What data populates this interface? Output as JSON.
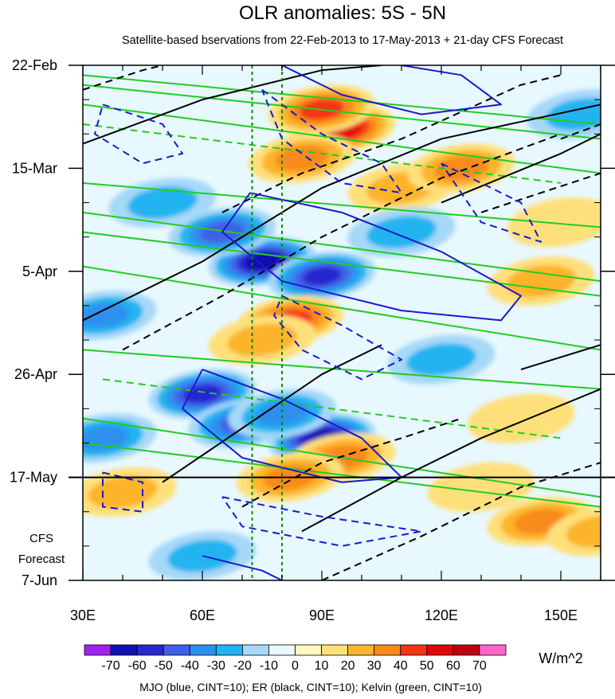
{
  "chart_data": {
    "type": "heatmap",
    "title": "OLR anomalies: 5S - 5N",
    "subtitle": "Satellite-based bservations from 22-Feb-2013 to 17-May-2013 + 21-day CFS Forecast",
    "x_tick_labels": [
      "30E",
      "60E",
      "90E",
      "120E",
      "150E"
    ],
    "x_tick_values": [
      30,
      60,
      90,
      120,
      150
    ],
    "xlim": [
      30,
      160
    ],
    "y_tick_labels": [
      "22-Feb",
      "15-Mar",
      "5-Apr",
      "26-Apr",
      "17-May",
      "7-Jun"
    ],
    "y_tick_days": [
      0,
      21,
      42,
      63,
      84,
      105
    ],
    "ylim_days": [
      0,
      105
    ],
    "observation_end_label": "17-May",
    "forecast_label_lines": [
      "CFS",
      "Forecast"
    ],
    "reference_lines_lon": [
      72.5,
      80
    ],
    "colorbar": {
      "labels": [
        "-70",
        "-60",
        "-50",
        "-40",
        "-30",
        "-20",
        "-10",
        "0",
        "10",
        "20",
        "30",
        "40",
        "50",
        "60",
        "70"
      ],
      "colors": [
        "#a020f0",
        "#1010b0",
        "#2828d0",
        "#4060e6",
        "#2e90ee",
        "#20b4f0",
        "#a6d8f8",
        "#e8f8ff",
        "#fff8c0",
        "#fee07a",
        "#fdb42c",
        "#f98a1a",
        "#f53414",
        "#e2060a",
        "#c00010",
        "#ff66cc"
      ],
      "units": "W/m^2"
    },
    "footer": "MJO (blue, CINT=10); ER (black, CINT=10); Kelvin (green, CINT=10)",
    "series": [
      {
        "name": "MJO",
        "color": "#1a1acd",
        "cint": 10
      },
      {
        "name": "ER",
        "color": "#000000",
        "cint": 10
      },
      {
        "name": "Kelvin",
        "color": "#22cc22",
        "cint": 10
      }
    ],
    "anomaly_features": [
      {
        "lon": 95,
        "day": 13,
        "value": 55
      },
      {
        "lon": 90,
        "day": 9,
        "value": 40
      },
      {
        "lon": 85,
        "day": 19,
        "value": 35
      },
      {
        "lon": 110,
        "day": 25,
        "value": 25
      },
      {
        "lon": 125,
        "day": 21,
        "value": 30
      },
      {
        "lon": 75,
        "day": 40,
        "value": -60
      },
      {
        "lon": 90,
        "day": 43,
        "value": -55
      },
      {
        "lon": 65,
        "day": 34,
        "value": -40
      },
      {
        "lon": 82,
        "day": 52,
        "value": 40
      },
      {
        "lon": 75,
        "day": 56,
        "value": 25
      },
      {
        "lon": 35,
        "day": 51,
        "value": -30
      },
      {
        "lon": 60,
        "day": 67,
        "value": -50
      },
      {
        "lon": 70,
        "day": 73,
        "value": -45
      },
      {
        "lon": 90,
        "day": 76,
        "value": -60
      },
      {
        "lon": 80,
        "day": 71,
        "value": -30
      },
      {
        "lon": 95,
        "day": 80,
        "value": 35
      },
      {
        "lon": 82,
        "day": 84,
        "value": 30
      },
      {
        "lon": 40,
        "day": 87,
        "value": 20
      },
      {
        "lon": 145,
        "day": 93,
        "value": 30
      },
      {
        "lon": 160,
        "day": 95,
        "value": 25
      },
      {
        "lon": 60,
        "day": 100,
        "value": -25
      },
      {
        "lon": 130,
        "day": 86,
        "value": 15
      },
      {
        "lon": 120,
        "day": 60,
        "value": -20
      },
      {
        "lon": 145,
        "day": 44,
        "value": 20
      },
      {
        "lon": 140,
        "day": 72,
        "value": 15
      },
      {
        "lon": 50,
        "day": 28,
        "value": -25
      },
      {
        "lon": 110,
        "day": 34,
        "value": -20
      },
      {
        "lon": 35,
        "day": 76,
        "value": -35
      },
      {
        "lon": 155,
        "day": 10,
        "value": -20
      },
      {
        "lon": 150,
        "day": 32,
        "value": 15
      }
    ],
    "contours": [
      {
        "series": "Kelvin",
        "style": "solid",
        "points": [
          [
            30,
            2
          ],
          [
            160,
            12
          ]
        ]
      },
      {
        "series": "Kelvin",
        "style": "solid",
        "points": [
          [
            30,
            4
          ],
          [
            160,
            15
          ]
        ]
      },
      {
        "series": "Kelvin",
        "style": "solid",
        "points": [
          [
            30,
            8
          ],
          [
            160,
            22
          ]
        ]
      },
      {
        "series": "Kelvin",
        "style": "solid",
        "points": [
          [
            30,
            24
          ],
          [
            160,
            33
          ]
        ]
      },
      {
        "series": "Kelvin",
        "style": "solid",
        "points": [
          [
            30,
            30
          ],
          [
            160,
            44
          ]
        ]
      },
      {
        "series": "Kelvin",
        "style": "solid",
        "points": [
          [
            30,
            34
          ],
          [
            160,
            47
          ]
        ]
      },
      {
        "series": "Kelvin",
        "style": "solid",
        "points": [
          [
            30,
            41
          ],
          [
            160,
            58
          ]
        ]
      },
      {
        "series": "Kelvin",
        "style": "solid",
        "points": [
          [
            30,
            58
          ],
          [
            160,
            66
          ]
        ]
      },
      {
        "series": "Kelvin",
        "style": "solid",
        "points": [
          [
            30,
            72
          ],
          [
            160,
            88
          ]
        ]
      },
      {
        "series": "Kelvin",
        "style": "solid",
        "points": [
          [
            30,
            77
          ],
          [
            160,
            90
          ]
        ]
      },
      {
        "series": "Kelvin",
        "style": "dashed",
        "points": [
          [
            30,
            12
          ],
          [
            150,
            24
          ]
        ]
      },
      {
        "series": "Kelvin",
        "style": "dashed",
        "points": [
          [
            35,
            64
          ],
          [
            150,
            76
          ]
        ]
      },
      {
        "series": "ER",
        "style": "solid",
        "points": [
          [
            30,
            16
          ],
          [
            60,
            7
          ],
          [
            90,
            1
          ],
          [
            105,
            0
          ]
        ]
      },
      {
        "series": "ER",
        "style": "solid",
        "points": [
          [
            30,
            52
          ],
          [
            60,
            40
          ],
          [
            90,
            25
          ],
          [
            120,
            15
          ],
          [
            160,
            8
          ]
        ]
      },
      {
        "series": "ER",
        "style": "solid",
        "points": [
          [
            50,
            85
          ],
          [
            70,
            74
          ],
          [
            90,
            63
          ],
          [
            105,
            57
          ]
        ]
      },
      {
        "series": "ER",
        "style": "solid",
        "points": [
          [
            85,
            95
          ],
          [
            110,
            84
          ],
          [
            130,
            76
          ],
          [
            160,
            66
          ]
        ]
      },
      {
        "series": "ER",
        "style": "solid",
        "points": [
          [
            120,
            28
          ],
          [
            150,
            18
          ],
          [
            160,
            14
          ]
        ]
      },
      {
        "series": "ER",
        "style": "solid",
        "points": [
          [
            140,
            62
          ],
          [
            160,
            57
          ]
        ]
      },
      {
        "series": "ER",
        "style": "dashed",
        "points": [
          [
            30,
            5
          ],
          [
            45,
            1
          ],
          [
            50,
            0
          ]
        ]
      },
      {
        "series": "ER",
        "style": "dashed",
        "points": [
          [
            40,
            58
          ],
          [
            65,
            47
          ],
          [
            90,
            35
          ],
          [
            120,
            23
          ],
          [
            150,
            14
          ]
        ]
      },
      {
        "series": "ER",
        "style": "dashed",
        "points": [
          [
            65,
            30
          ],
          [
            85,
            22
          ],
          [
            110,
            15
          ],
          [
            140,
            4
          ],
          [
            150,
            2
          ]
        ]
      },
      {
        "series": "ER",
        "style": "dashed",
        "points": [
          [
            70,
            90
          ],
          [
            90,
            81
          ],
          [
            110,
            76
          ],
          [
            125,
            72
          ]
        ]
      },
      {
        "series": "ER",
        "style": "dashed",
        "points": [
          [
            90,
            105
          ],
          [
            115,
            96
          ],
          [
            140,
            86
          ],
          [
            160,
            81
          ]
        ]
      },
      {
        "series": "ER",
        "style": "dashed",
        "points": [
          [
            130,
            30
          ],
          [
            160,
            22
          ]
        ]
      },
      {
        "series": "ER",
        "style": "dashed",
        "points": [
          [
            150,
            15
          ],
          [
            160,
            12
          ]
        ]
      },
      {
        "series": "MJO",
        "style": "solid",
        "points": [
          [
            72,
            26
          ],
          [
            65,
            34
          ],
          [
            80,
            44
          ],
          [
            110,
            50
          ],
          [
            135,
            52
          ],
          [
            140,
            47
          ],
          [
            120,
            38
          ],
          [
            95,
            30
          ],
          [
            72,
            26
          ]
        ]
      },
      {
        "series": "MJO",
        "style": "solid",
        "points": [
          [
            60,
            62
          ],
          [
            55,
            70
          ],
          [
            70,
            80
          ],
          [
            95,
            85
          ],
          [
            110,
            84
          ],
          [
            100,
            76
          ],
          [
            80,
            68
          ],
          [
            60,
            62
          ]
        ]
      },
      {
        "series": "MJO",
        "style": "solid",
        "points": [
          [
            80,
            0
          ],
          [
            95,
            6
          ],
          [
            115,
            10
          ],
          [
            135,
            8
          ],
          [
            125,
            2
          ],
          [
            110,
            0
          ]
        ]
      },
      {
        "series": "MJO",
        "style": "solid",
        "points": [
          [
            60,
            100
          ],
          [
            75,
            103
          ],
          [
            80,
            105
          ]
        ]
      },
      {
        "series": "MJO",
        "style": "dashed",
        "points": [
          [
            35,
            8
          ],
          [
            50,
            12
          ],
          [
            55,
            18
          ],
          [
            45,
            20
          ],
          [
            33,
            14
          ],
          [
            35,
            8
          ]
        ]
      },
      {
        "series": "MJO",
        "style": "dashed",
        "points": [
          [
            75,
            5
          ],
          [
            90,
            14
          ],
          [
            105,
            20
          ],
          [
            110,
            26
          ],
          [
            95,
            24
          ],
          [
            80,
            15
          ],
          [
            75,
            5
          ]
        ]
      },
      {
        "series": "MJO",
        "style": "dashed",
        "points": [
          [
            80,
            47
          ],
          [
            95,
            53
          ],
          [
            110,
            60
          ],
          [
            100,
            64
          ],
          [
            85,
            58
          ],
          [
            78,
            51
          ],
          [
            80,
            47
          ]
        ]
      },
      {
        "series": "MJO",
        "style": "dashed",
        "points": [
          [
            35,
            83
          ],
          [
            45,
            85
          ],
          [
            45,
            91
          ],
          [
            35,
            90
          ],
          [
            35,
            83
          ]
        ]
      },
      {
        "series": "MJO",
        "style": "dashed",
        "points": [
          [
            65,
            88
          ],
          [
            90,
            92
          ],
          [
            115,
            95
          ],
          [
            95,
            98
          ],
          [
            70,
            94
          ],
          [
            65,
            88
          ]
        ]
      },
      {
        "series": "MJO",
        "style": "dashed",
        "points": [
          [
            120,
            20
          ],
          [
            140,
            28
          ],
          [
            145,
            36
          ],
          [
            130,
            32
          ],
          [
            120,
            20
          ]
        ]
      }
    ]
  }
}
